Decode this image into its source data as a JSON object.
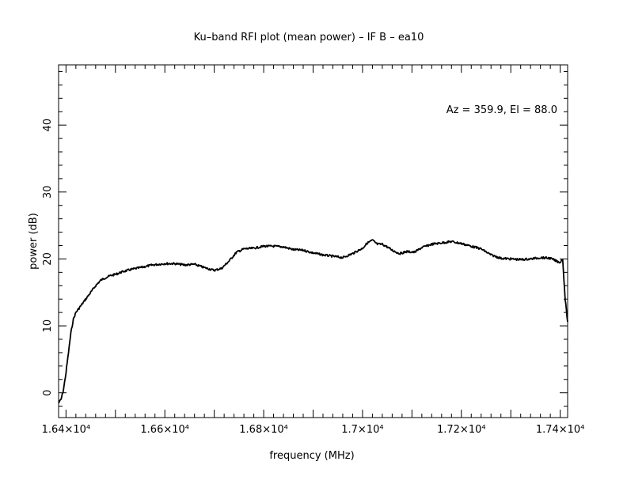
{
  "chart_data": {
    "type": "line",
    "title": "Ku–band RFI plot (mean power) – IF B – ea10",
    "xlabel": "frequency (MHz)",
    "ylabel": "power (dB)",
    "annotation": "Az = 359.9, El = 88.0",
    "xlim": [
      16385,
      17415
    ],
    "ylim": [
      -3.7,
      49
    ],
    "grid": false,
    "x_ticks": [
      {
        "value": 16400,
        "label": "1.64×10⁴"
      },
      {
        "value": 16600,
        "label": "1.66×10⁴"
      },
      {
        "value": 16800,
        "label": "1.68×10⁴"
      },
      {
        "value": 17000,
        "label": "1.7×10⁴"
      },
      {
        "value": 17200,
        "label": "1.72×10⁴"
      },
      {
        "value": 17400,
        "label": "1.74×10⁴"
      }
    ],
    "y_ticks": [
      {
        "value": 0,
        "label": "0"
      },
      {
        "value": 10,
        "label": "10"
      },
      {
        "value": 20,
        "label": "20"
      },
      {
        "value": 30,
        "label": "30"
      },
      {
        "value": 40,
        "label": "40"
      }
    ],
    "series": [
      {
        "color": "#000000",
        "x": [
          16385,
          16390,
          16395,
          16400,
          16405,
          16410,
          16415,
          16420,
          16425,
          16430,
          16440,
          16450,
          16460,
          16470,
          16480,
          16490,
          16500,
          16515,
          16530,
          16550,
          16575,
          16600,
          16620,
          16640,
          16660,
          16680,
          16700,
          16715,
          16730,
          16745,
          16760,
          16780,
          16800,
          16820,
          16840,
          16860,
          16880,
          16900,
          16920,
          16940,
          16960,
          16980,
          17000,
          17010,
          17020,
          17030,
          17040,
          17050,
          17060,
          17075,
          17090,
          17105,
          17120,
          17140,
          17160,
          17180,
          17200,
          17220,
          17240,
          17260,
          17280,
          17300,
          17320,
          17340,
          17360,
          17380,
          17395,
          17400,
          17405,
          17410,
          17415
        ],
        "y": [
          -1.5,
          -1,
          0.5,
          3,
          6,
          9,
          11,
          12,
          12.5,
          13,
          14,
          15,
          16,
          16.8,
          17.2,
          17.5,
          17.7,
          18.1,
          18.4,
          18.7,
          19.1,
          19.3,
          19.3,
          19.1,
          19.2,
          18.7,
          18.3,
          18.6,
          19.7,
          21,
          21.5,
          21.6,
          21.9,
          21.9,
          21.8,
          21.4,
          21.3,
          20.9,
          20.6,
          20.4,
          20.2,
          20.8,
          21.6,
          22.4,
          22.8,
          22.2,
          22.2,
          21.8,
          21.3,
          20.8,
          21.1,
          21.0,
          21.7,
          22.2,
          22.4,
          22.6,
          22.3,
          21.9,
          21.5,
          20.6,
          20.1,
          20.0,
          19.9,
          20.0,
          20.2,
          20.1,
          19.6,
          19.5,
          20.0,
          14,
          10.6
        ]
      }
    ]
  }
}
